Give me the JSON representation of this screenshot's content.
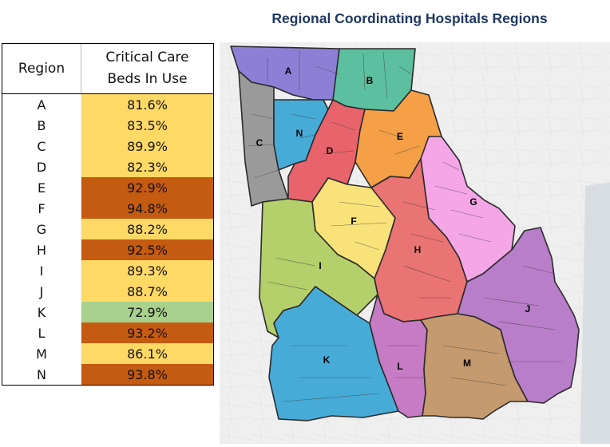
{
  "table": {
    "headers": {
      "region": "Region",
      "beds_line1": "Critical Care",
      "beds_line2": "Beds In Use"
    },
    "rows": [
      {
        "region": "A",
        "value": "81.6%",
        "level": "yellow"
      },
      {
        "region": "B",
        "value": "83.5%",
        "level": "yellow"
      },
      {
        "region": "C",
        "value": "89.9%",
        "level": "yellow"
      },
      {
        "region": "D",
        "value": "82.3%",
        "level": "yellow"
      },
      {
        "region": "E",
        "value": "92.9%",
        "level": "orange"
      },
      {
        "region": "F",
        "value": "94.8%",
        "level": "orange"
      },
      {
        "region": "G",
        "value": "88.2%",
        "level": "yellow"
      },
      {
        "region": "H",
        "value": "92.5%",
        "level": "orange"
      },
      {
        "region": "I",
        "value": "89.3%",
        "level": "yellow"
      },
      {
        "region": "J",
        "value": "88.7%",
        "level": "yellow"
      },
      {
        "region": "K",
        "value": "72.9%",
        "level": "green"
      },
      {
        "region": "L",
        "value": "93.2%",
        "level": "orange"
      },
      {
        "region": "M",
        "value": "86.1%",
        "level": "yellow"
      },
      {
        "region": "N",
        "value": "93.8%",
        "level": "orange"
      }
    ],
    "colors": {
      "yellow": "#ffd966",
      "orange": "#c55a11",
      "green": "#a9d18e"
    }
  },
  "map": {
    "title": "Regional Coordinating Hospitals Regions",
    "regions": [
      {
        "label": "A",
        "color": "#8e7fd6"
      },
      {
        "label": "B",
        "color": "#5cbfa0"
      },
      {
        "label": "C",
        "color": "#9a9a9a"
      },
      {
        "label": "D",
        "color": "#e8636b"
      },
      {
        "label": "E",
        "color": "#f5a046"
      },
      {
        "label": "F",
        "color": "#f9e27a"
      },
      {
        "label": "G",
        "color": "#f4a6e6"
      },
      {
        "label": "H",
        "color": "#ea7373"
      },
      {
        "label": "I",
        "color": "#b5cf6b"
      },
      {
        "label": "J",
        "color": "#b97ec9"
      },
      {
        "label": "K",
        "color": "#47abd8"
      },
      {
        "label": "L",
        "color": "#c77bc4"
      },
      {
        "label": "M",
        "color": "#c59a6e"
      },
      {
        "label": "N",
        "color": "#47abd8"
      }
    ]
  }
}
